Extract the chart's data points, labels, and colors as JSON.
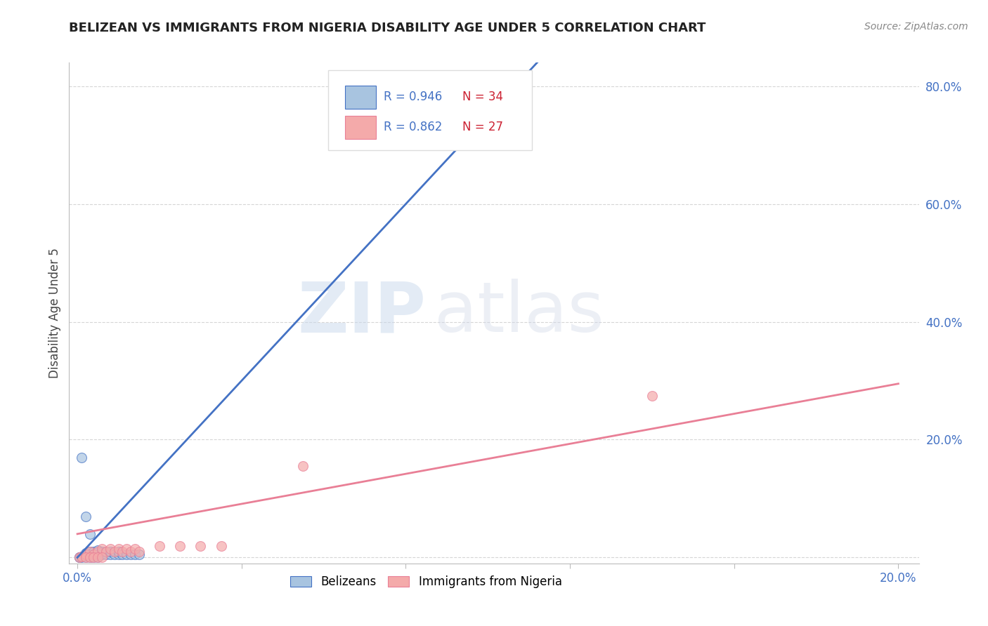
{
  "title": "BELIZEAN VS IMMIGRANTS FROM NIGERIA DISABILITY AGE UNDER 5 CORRELATION CHART",
  "source": "Source: ZipAtlas.com",
  "ylabel": "Disability Age Under 5",
  "y_ticks": [
    0.0,
    0.2,
    0.4,
    0.6,
    0.8
  ],
  "y_tick_labels": [
    "",
    "20.0%",
    "40.0%",
    "60.0%",
    "80.0%"
  ],
  "x_ticks": [
    0.0,
    0.04,
    0.08,
    0.12,
    0.16,
    0.2
  ],
  "x_tick_labels": [
    "0.0%",
    "",
    "",
    "",
    "",
    "20.0%"
  ],
  "xlim": [
    -0.002,
    0.205
  ],
  "ylim": [
    -0.01,
    0.84
  ],
  "blue_color": "#A8C4E0",
  "pink_color": "#F4AAAA",
  "blue_line_color": "#4472C4",
  "pink_line_color": "#E97F96",
  "legend_label_blue": "Belizeans",
  "legend_label_pink": "Immigrants from Nigeria",
  "watermark_zip": "ZIP",
  "watermark_atlas": "atlas",
  "blue_scatter_x": [
    0.0005,
    0.001,
    0.0015,
    0.002,
    0.002,
    0.003,
    0.003,
    0.004,
    0.004,
    0.005,
    0.005,
    0.006,
    0.006,
    0.007,
    0.007,
    0.008,
    0.008,
    0.009,
    0.01,
    0.01,
    0.011,
    0.012,
    0.013,
    0.0005,
    0.001,
    0.002,
    0.003,
    0.004,
    0.005,
    0.001,
    0.002,
    0.003,
    0.014,
    0.015
  ],
  "blue_scatter_y": [
    0.001,
    0.002,
    0.003,
    0.005,
    0.008,
    0.005,
    0.01,
    0.005,
    0.01,
    0.005,
    0.012,
    0.005,
    0.01,
    0.005,
    0.01,
    0.005,
    0.01,
    0.005,
    0.005,
    0.01,
    0.005,
    0.005,
    0.005,
    0.001,
    0.001,
    0.001,
    0.001,
    0.001,
    0.001,
    0.17,
    0.07,
    0.04,
    0.005,
    0.005
  ],
  "pink_scatter_x": [
    0.0005,
    0.001,
    0.002,
    0.003,
    0.004,
    0.005,
    0.006,
    0.007,
    0.008,
    0.009,
    0.01,
    0.011,
    0.012,
    0.013,
    0.014,
    0.015,
    0.02,
    0.025,
    0.03,
    0.035,
    0.055,
    0.14,
    0.002,
    0.003,
    0.004,
    0.005,
    0.006
  ],
  "pink_scatter_y": [
    0.001,
    0.002,
    0.005,
    0.01,
    0.005,
    0.01,
    0.015,
    0.01,
    0.015,
    0.01,
    0.015,
    0.01,
    0.015,
    0.01,
    0.015,
    0.01,
    0.02,
    0.02,
    0.02,
    0.02,
    0.155,
    0.275,
    0.001,
    0.001,
    0.001,
    0.001,
    0.001
  ],
  "blue_line_x": [
    0.0,
    0.2
  ],
  "blue_line_y": [
    0.0,
    1.5
  ],
  "pink_line_x": [
    0.0,
    0.2
  ],
  "pink_line_y": [
    0.04,
    0.295
  ],
  "grid_color": "#CCCCCC",
  "background_color": "#FFFFFF",
  "axis_color": "#BBBBBB",
  "title_color": "#222222",
  "tick_color": "#4472C4",
  "source_color": "#888888"
}
